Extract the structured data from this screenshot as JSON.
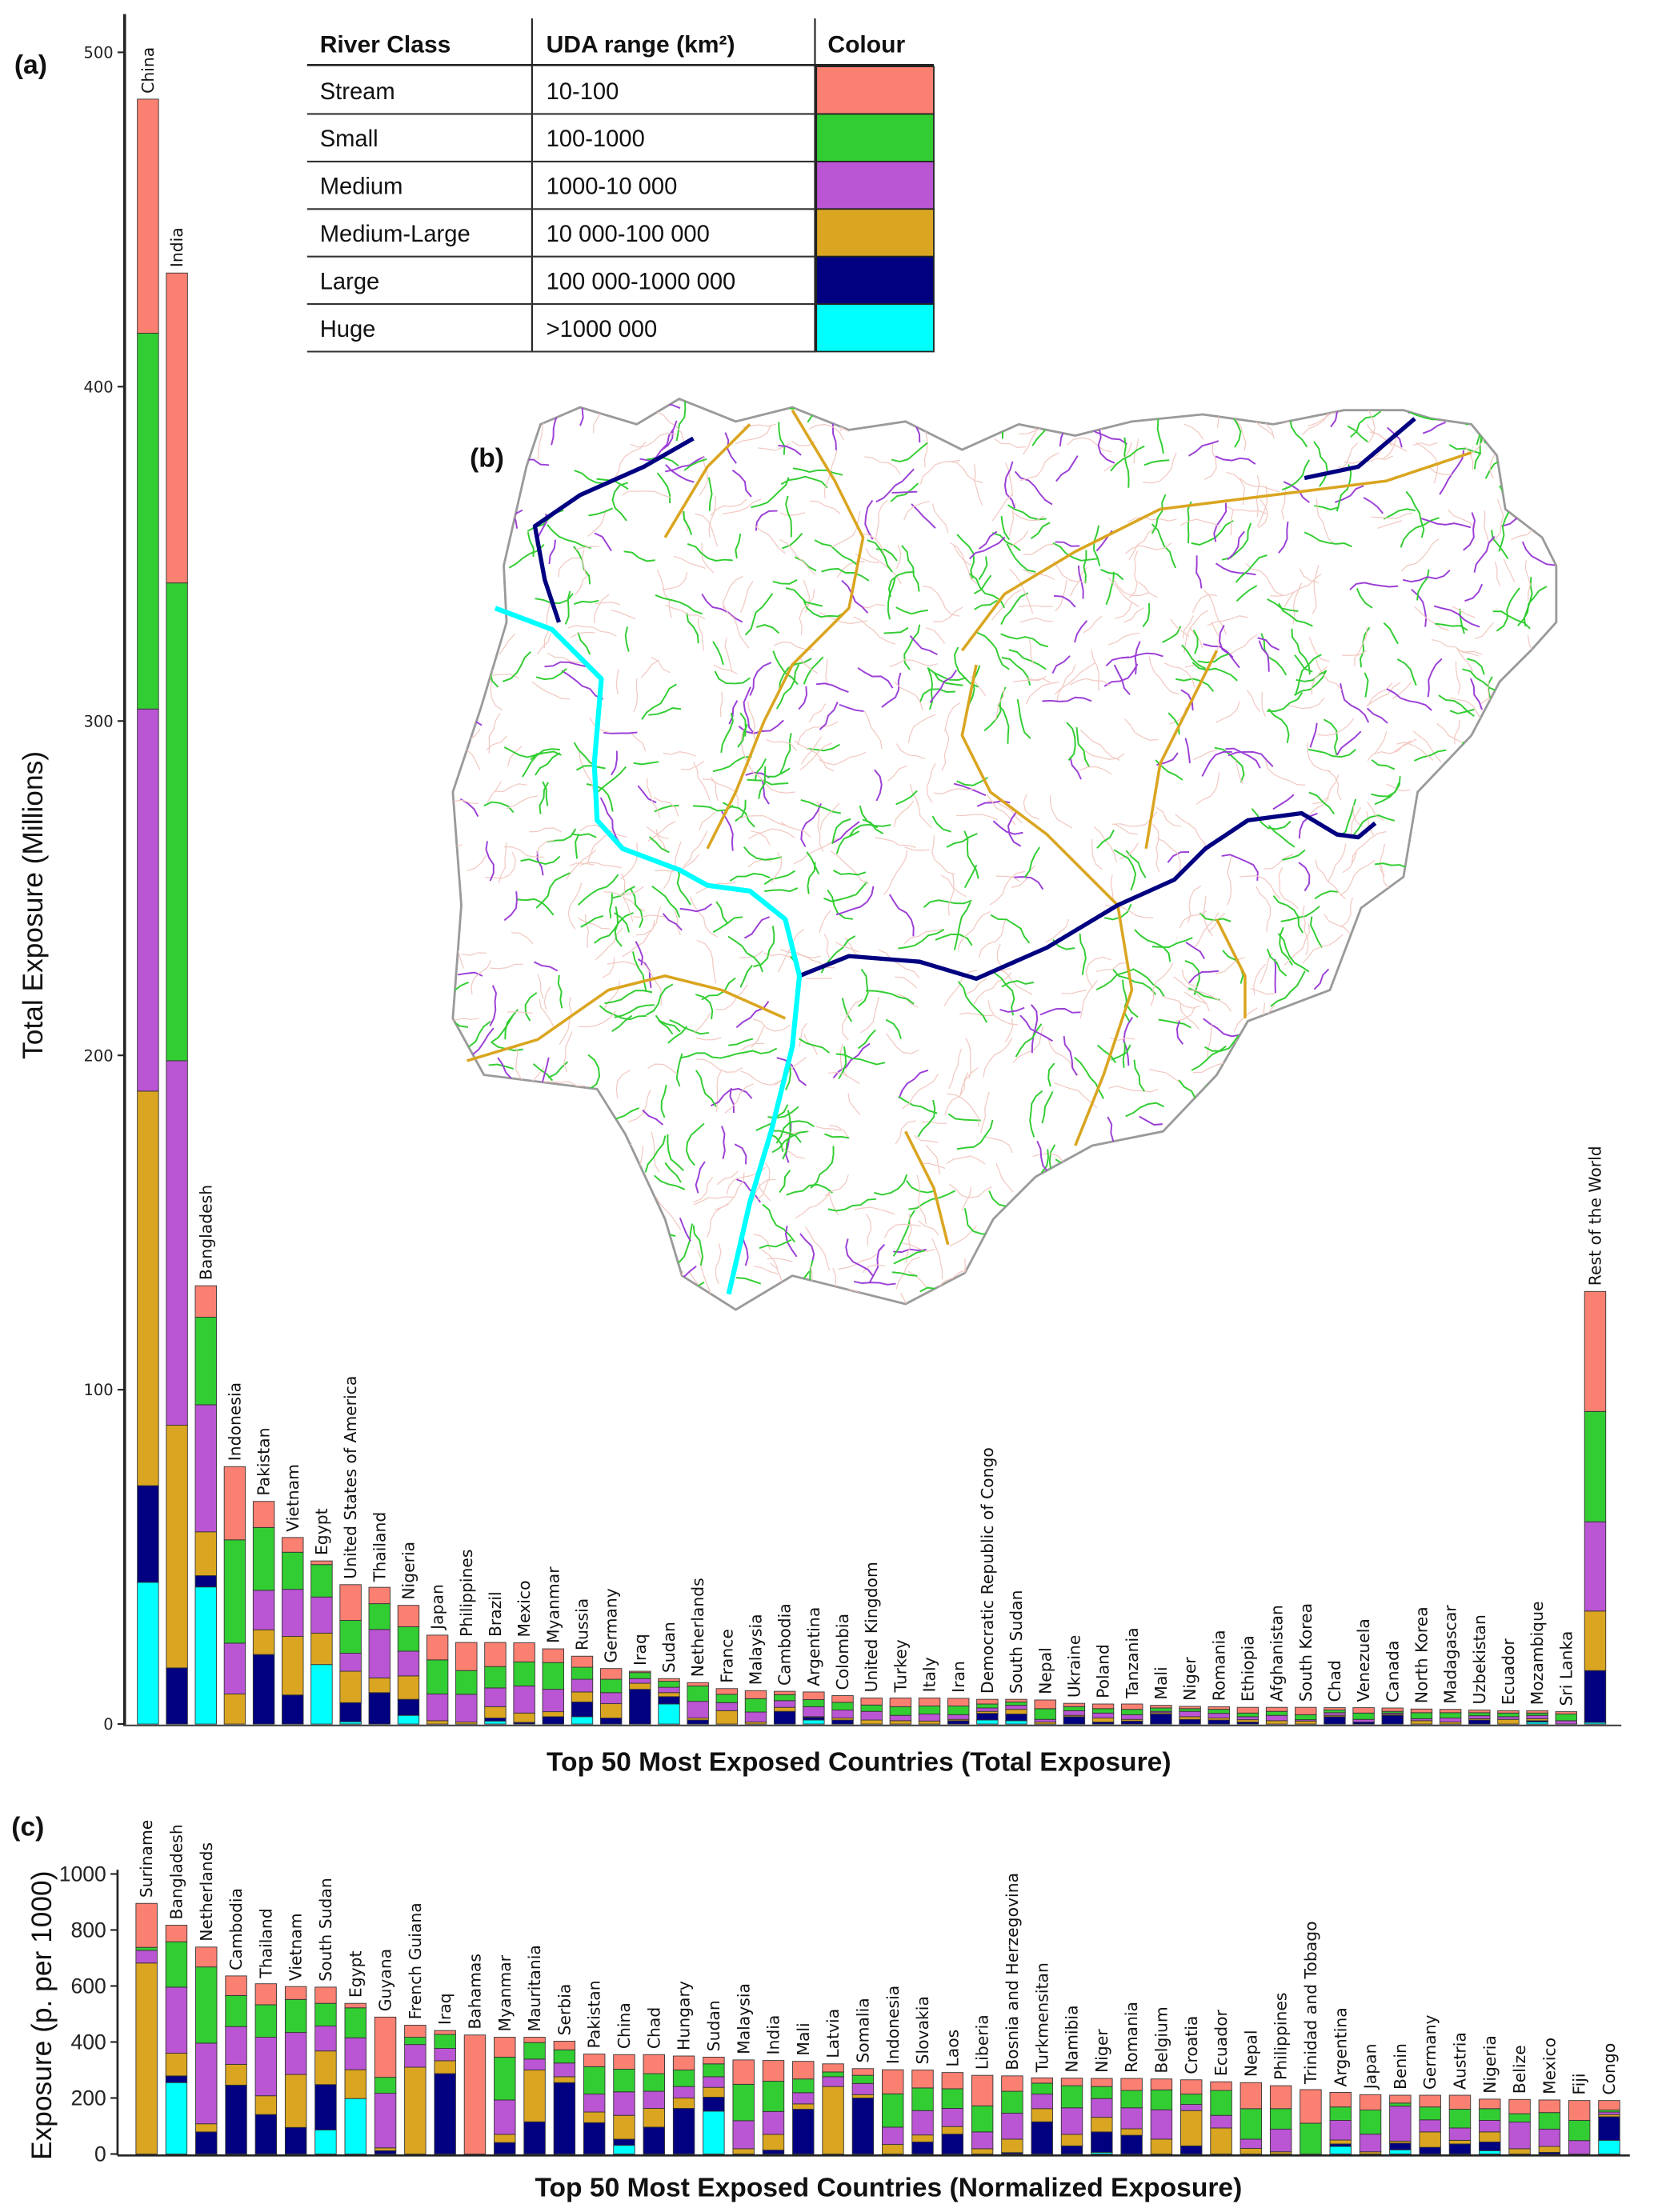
{
  "legend": {
    "headers": [
      "River Class",
      "UDA range (km²)",
      "Colour"
    ],
    "rows": [
      {
        "class": "Stream",
        "range": "10-100",
        "color": "#FA8072"
      },
      {
        "class": "Small",
        "range": "100-1000",
        "color": "#32CD32"
      },
      {
        "class": "Medium",
        "range": "1000-10 000",
        "color": "#BA55D3"
      },
      {
        "class": "Medium-Large",
        "range": "10 000-100 000",
        "color": "#DAA520"
      },
      {
        "class": "Large",
        "range": "100 000-1000 000",
        "color": "#000080"
      },
      {
        "class": "Huge",
        "range": ">1000 000",
        "color": "#00FFFF"
      }
    ]
  },
  "map": {
    "panel_label": "(b)"
  },
  "chart_data": [
    {
      "type": "bar",
      "stacked": true,
      "panel_label": "(a)",
      "title": "",
      "xlabel": "Top 50 Most Exposed Countries (Total Exposure)",
      "ylabel": "Total Exposure (Millions)",
      "ylim": [
        0,
        500
      ],
      "yticks": [
        0,
        100,
        200,
        300,
        400,
        500
      ],
      "grid": false,
      "legend": "top-center table",
      "categories": [
        "China",
        "India",
        "Bangladesh",
        "Indonesia",
        "Pakistan",
        "Vietnam",
        "Egypt",
        "United States of America",
        "Thailand",
        "Nigeria",
        "Japan",
        "Philippines",
        "Brazil",
        "Mexico",
        "Myanmar",
        "Russia",
        "Germany",
        "Iraq",
        "Sudan",
        "Netherlands",
        "France",
        "Malaysia",
        "Cambodia",
        "Argentina",
        "Colombia",
        "United Kingdom",
        "Turkey",
        "Italy",
        "Iran",
        "Democratic Republic of Congo",
        "South Sudan",
        "Nepal",
        "Ukraine",
        "Poland",
        "Tanzania",
        "Mali",
        "Niger",
        "Romania",
        "Ethiopia",
        "Afghanistan",
        "South Korea",
        "Chad",
        "Venezuela",
        "Canada",
        "North Korea",
        "Madagascar",
        "Uzbekistan",
        "Ecuador",
        "Mozambique",
        "Sri Lanka",
        "Rest of the World"
      ],
      "series": [
        {
          "name": "Huge",
          "color": "#00FFFF",
          "values": [
            42.4,
            0,
            41,
            0,
            0,
            0,
            17.8,
            0.7,
            0,
            2.6,
            0,
            0,
            0.9,
            0,
            0,
            2.2,
            0,
            0,
            6,
            0,
            0,
            0,
            0,
            1.2,
            0,
            0,
            0,
            0,
            0,
            1.2,
            1,
            0,
            0,
            0,
            0,
            0,
            0,
            0,
            0,
            0,
            0,
            0,
            0,
            0,
            0,
            0,
            0,
            0,
            0.6,
            0,
            0.5
          ]
        },
        {
          "name": "Large",
          "color": "#000080",
          "values": [
            28.9,
            16.8,
            3.4,
            0,
            20.8,
            8.7,
            0,
            5.7,
            9.4,
            4.8,
            0,
            0,
            0.9,
            0.5,
            2.2,
            4.4,
            1.8,
            10.4,
            2.2,
            1.2,
            0,
            0,
            3.8,
            0.8,
            1.2,
            0,
            0,
            0,
            1,
            2,
            2,
            0,
            2.2,
            0.6,
            0.9,
            3,
            1.4,
            1.2,
            0.6,
            0,
            0,
            2.2,
            0.6,
            2.6,
            0,
            0,
            1.2,
            0,
            0.4,
            0,
            15.5
          ]
        },
        {
          "name": "Medium-Large",
          "color": "#DAA520",
          "values": [
            118,
            72.6,
            13.1,
            9,
            7.4,
            17.5,
            9.4,
            9.4,
            4.4,
            7,
            1,
            0.6,
            3.4,
            2.8,
            1.5,
            3,
            4.3,
            1.8,
            1.2,
            0.6,
            4,
            0.6,
            1.2,
            0.2,
            0.6,
            1.2,
            1,
            0.9,
            0.4,
            0.6,
            1.4,
            0.6,
            0.4,
            1.2,
            0.5,
            0.4,
            0.8,
            0.6,
            0.7,
            1,
            0.9,
            0.4,
            0,
            0.3,
            1,
            0.6,
            0.4,
            1.4,
            0.6,
            0,
            17.8
          ]
        },
        {
          "name": "Medium",
          "color": "#BA55D3",
          "values": [
            114.3,
            109,
            38,
            15.2,
            11.8,
            14.1,
            10.8,
            5.4,
            14.5,
            7.4,
            8,
            8.3,
            5.6,
            8.1,
            6.7,
            3.8,
            3.3,
            1.4,
            1.6,
            5,
            2.4,
            3,
            2,
            3,
            2.4,
            2.6,
            1.6,
            2.1,
            1.4,
            1,
            1.2,
            0.8,
            1.4,
            1.5,
            1.4,
            0.4,
            1.6,
            1.4,
            0.9,
            1.6,
            0.4,
            0.8,
            0.8,
            0.4,
            0.6,
            1.2,
            0.9,
            0.8,
            1,
            1,
            26.7
          ]
        },
        {
          "name": "Small",
          "color": "#32CD32",
          "values": [
            112.4,
            142.9,
            26.2,
            30.9,
            18.8,
            11.1,
            9.7,
            9.8,
            7.7,
            7.3,
            10.2,
            7.1,
            6.4,
            7.2,
            8,
            3.6,
            4,
            1.8,
            1.8,
            4.6,
            2.5,
            4,
            1.8,
            2.1,
            2.3,
            1.9,
            2.6,
            2.4,
            2.6,
            1.2,
            1,
            3.2,
            1.2,
            1.3,
            1.6,
            1,
            0.8,
            1.2,
            1.1,
            1.2,
            1.5,
            0.8,
            1.9,
            0.5,
            1.8,
            1.6,
            0.9,
            1.1,
            0.7,
            2,
            33
          ]
        },
        {
          "name": "Stream",
          "color": "#FA8072",
          "values": [
            70,
            92.7,
            9.4,
            21.9,
            7.8,
            4.4,
            1.1,
            10.7,
            4.9,
            6.4,
            7.4,
            8.4,
            7.2,
            5.7,
            4.1,
            3.3,
            3.2,
            0.4,
            0.8,
            1,
            1.7,
            2.4,
            1,
            2.3,
            2,
            2.1,
            2.6,
            2.4,
            2.3,
            1.4,
            0.8,
            2.6,
            1,
            1.4,
            1.6,
            0.8,
            0.7,
            0.8,
            1.7,
            1.2,
            2.2,
            0.7,
            1.6,
            1,
            1.1,
            1,
            0.8,
            0.7,
            0.7,
            0.7,
            35.9
          ]
        }
      ]
    },
    {
      "type": "bar",
      "stacked": true,
      "panel_label": "(c)",
      "title": "",
      "xlabel": "Top 50 Most Exposed Countries (Normalized Exposure)",
      "ylabel": "Exposure (p. per 1000)",
      "ylim": [
        0,
        1000
      ],
      "yticks": [
        0,
        200,
        400,
        600,
        800,
        1000
      ],
      "grid": false,
      "categories": [
        "Suriname",
        "Bangladesh",
        "Netherlands",
        "Cambodia",
        "Thailand",
        "Vietnam",
        "South Sudan",
        "Egypt",
        "Guyana",
        "French Guiana",
        "Iraq",
        "Bahamas",
        "Myanmar",
        "Mauritania",
        "Serbia",
        "Pakistan",
        "China",
        "Chad",
        "Hungary",
        "Sudan",
        "Malaysia",
        "India",
        "Mali",
        "Latvia",
        "Somalia",
        "Indonesia",
        "Slovakia",
        "Laos",
        "Liberia",
        "Bosnia and Herzegovina",
        "Turkmensitan",
        "Namibia",
        "Niger",
        "Romania",
        "Belgium",
        "Croatia",
        "Ecuador",
        "Nepal",
        "Philippines",
        "Trinidad and Tobago",
        "Argentina",
        "Japan",
        "Benin",
        "Germany",
        "Austria",
        "Nigeria",
        "Belize",
        "Mexico",
        "Fiji",
        "Congo"
      ],
      "series": [
        {
          "name": "Huge",
          "color": "#00FFFF",
          "values": [
            0,
            255,
            0,
            0,
            0,
            0,
            86,
            198,
            0,
            0,
            0,
            0,
            0,
            0,
            0,
            0,
            31,
            0,
            0,
            153,
            0,
            0,
            0,
            0,
            0,
            0,
            0,
            0,
            0,
            0,
            0,
            0,
            6,
            0,
            0,
            0,
            0,
            0,
            0,
            0,
            27,
            0,
            15,
            0,
            0,
            12,
            0,
            0,
            0,
            49
          ]
        },
        {
          "name": "Large",
          "color": "#000080",
          "values": [
            0,
            24,
            79,
            246,
            141,
            95,
            162,
            0,
            12,
            0,
            287,
            0,
            41,
            115,
            255,
            112,
            22,
            96,
            163,
            50,
            0,
            14,
            160,
            0,
            200,
            0,
            43,
            71,
            0,
            5,
            115,
            29,
            73,
            67,
            0,
            29,
            0,
            0,
            0,
            0,
            9,
            0,
            24,
            24,
            36,
            31,
            0,
            6,
            0,
            84
          ]
        },
        {
          "name": "Medium-Large",
          "color": "#DAA520",
          "values": [
            682,
            81,
            29,
            74,
            67,
            189,
            120,
            103,
            10,
            310,
            46,
            0,
            29,
            185,
            21,
            38,
            85,
            67,
            37,
            35,
            19,
            56,
            19,
            241,
            12,
            34,
            25,
            27,
            19,
            48,
            47,
            41,
            52,
            23,
            53,
            126,
            93,
            20,
            8,
            0,
            14,
            8,
            7,
            55,
            13,
            36,
            19,
            21,
            0,
            8
          ]
        },
        {
          "name": "Medium",
          "color": "#BA55D3",
          "values": [
            45,
            236,
            288,
            135,
            209,
            150,
            89,
            114,
            195,
            81,
            44,
            0,
            123,
            39,
            49,
            64,
            84,
            61,
            41,
            38,
            100,
            82,
            40,
            35,
            40,
            62,
            87,
            65,
            60,
            93,
            52,
            95,
            67,
            75,
            105,
            22,
            45,
            33,
            81,
            0,
            70,
            63,
            125,
            43,
            44,
            41,
            95,
            62,
            48,
            9
          ]
        },
        {
          "name": "Small",
          "color": "#32CD32",
          "values": [
            11,
            162,
            272,
            111,
            116,
            118,
            81,
            107,
            57,
            26,
            50,
            0,
            153,
            59,
            47,
            98,
            81,
            63,
            59,
            46,
            130,
            108,
            49,
            17,
            29,
            119,
            81,
            70,
            93,
            78,
            39,
            79,
            43,
            62,
            71,
            37,
            89,
            109,
            73,
            110,
            48,
            86,
            11,
            46,
            67,
            42,
            30,
            59,
            72,
            7
          ]
        },
        {
          "name": "Stream",
          "color": "#FA8072",
          "values": [
            157,
            59,
            71,
            70,
            75,
            46,
            58,
            16,
            215,
            43,
            14,
            425,
            71,
            19,
            31,
            45,
            52,
            68,
            50,
            24,
            87,
            74,
            63,
            29,
            24,
            86,
            64,
            58,
            109,
            55,
            19,
            27,
            29,
            43,
            39,
            51,
            31,
            93,
            82,
            120,
            52,
            55,
            28,
            42,
            50,
            34,
            51,
            45,
            71,
            34
          ]
        }
      ]
    }
  ]
}
